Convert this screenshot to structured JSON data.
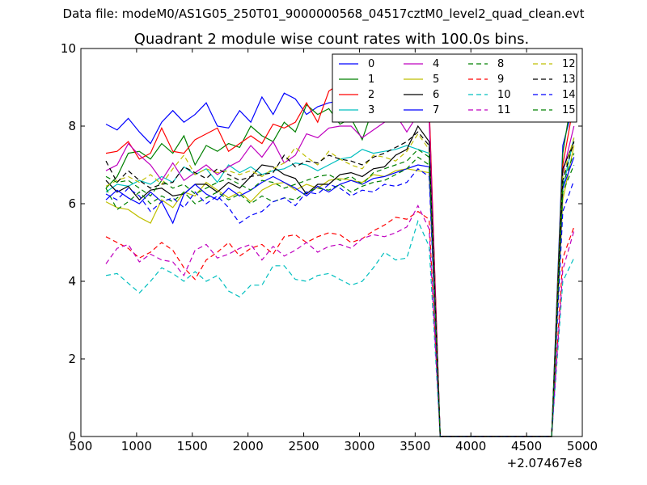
{
  "chart_data": {
    "type": "line",
    "suptitle": "Data file: modeM0/AS1G05_250T01_9000000568_04517cztM0_level2_quad_clean.evt",
    "title": "Quadrant 2 module wise count rates with 100.0s bins.",
    "xlabel": "",
    "ylabel": "",
    "x_offset_label": "+2.07467e8",
    "xlim": [
      500,
      5000
    ],
    "ylim": [
      0,
      10
    ],
    "xticks": [
      500,
      1000,
      1500,
      2000,
      2500,
      3000,
      3500,
      4000,
      4500,
      5000
    ],
    "yticks": [
      0,
      2,
      4,
      6,
      8,
      10
    ],
    "legend_position": "top-right",
    "legend_columns": 4,
    "x": [
      725,
      825,
      925,
      1025,
      1125,
      1225,
      1325,
      1425,
      1525,
      1625,
      1725,
      1825,
      1925,
      2025,
      2125,
      2225,
      2325,
      2425,
      2525,
      2625,
      2725,
      2825,
      2925,
      3025,
      3125,
      3225,
      3325,
      3425,
      3525,
      3625,
      3725,
      3825,
      3925,
      4025,
      4125,
      4225,
      4325,
      4425,
      4525,
      4625,
      4725,
      4825,
      4925
    ],
    "series": [
      {
        "name": "0",
        "color": "#0000ff",
        "dash": "solid",
        "values": [
          8.05,
          7.9,
          8.2,
          7.85,
          7.55,
          8.1,
          8.4,
          8.1,
          8.3,
          8.6,
          8.0,
          7.95,
          8.4,
          8.1,
          8.75,
          8.3,
          8.85,
          8.7,
          8.3,
          8.5,
          8.6,
          8.65,
          8.55,
          8.65,
          8.6,
          8.5,
          8.55,
          8.7,
          8.6,
          8.5,
          0,
          0,
          0,
          0,
          0,
          0,
          0,
          0,
          0,
          0,
          0,
          7.5,
          8.6
        ]
      },
      {
        "name": "1",
        "color": "#008000",
        "dash": "solid",
        "values": [
          6.4,
          6.7,
          7.3,
          7.35,
          7.15,
          7.55,
          7.3,
          7.75,
          7.0,
          7.5,
          7.35,
          7.55,
          7.45,
          8.0,
          7.75,
          7.6,
          8.1,
          7.85,
          8.55,
          8.3,
          8.45,
          8.05,
          8.2,
          7.65,
          8.5,
          8.35,
          8.15,
          8.6,
          8.5,
          8.4,
          0,
          0,
          0,
          0,
          0,
          0,
          0,
          0,
          0,
          0,
          0,
          7.3,
          9.1
        ]
      },
      {
        "name": "2",
        "color": "#ff0000",
        "dash": "solid",
        "values": [
          7.3,
          7.35,
          7.6,
          7.15,
          7.3,
          7.95,
          7.35,
          7.3,
          7.65,
          7.8,
          7.95,
          7.35,
          7.55,
          7.75,
          7.55,
          8.05,
          7.95,
          8.1,
          8.6,
          8.1,
          8.9,
          9.1,
          8.9,
          8.4,
          8.5,
          8.7,
          8.55,
          8.85,
          8.8,
          8.6,
          0,
          0,
          0,
          0,
          0,
          0,
          0,
          0,
          0,
          0,
          0,
          7.0,
          8.6
        ]
      },
      {
        "name": "3",
        "color": "#00bfbf",
        "dash": "solid",
        "values": [
          6.3,
          6.5,
          6.45,
          6.6,
          6.5,
          6.7,
          6.55,
          6.95,
          6.75,
          6.9,
          6.55,
          7.0,
          6.8,
          6.95,
          6.75,
          6.85,
          6.9,
          7.05,
          7.0,
          6.85,
          7.0,
          7.15,
          7.2,
          7.4,
          7.3,
          7.35,
          7.4,
          7.5,
          7.4,
          7.3,
          0,
          0,
          0,
          0,
          0,
          0,
          0,
          0,
          0,
          0,
          0,
          6.4,
          7.7
        ]
      },
      {
        "name": "4",
        "color": "#bf00bf",
        "dash": "solid",
        "values": [
          6.85,
          7.0,
          7.55,
          7.25,
          7.0,
          6.6,
          7.05,
          6.6,
          6.8,
          7.0,
          6.75,
          6.95,
          7.1,
          7.5,
          7.2,
          7.6,
          7.05,
          7.25,
          7.8,
          7.7,
          7.95,
          8.0,
          8.0,
          7.7,
          7.9,
          8.1,
          8.3,
          7.85,
          8.3,
          8.2,
          0,
          0,
          0,
          0,
          0,
          0,
          0,
          0,
          0,
          0,
          0,
          6.8,
          8.0
        ]
      },
      {
        "name": "5",
        "color": "#bfbf00",
        "dash": "solid",
        "values": [
          6.05,
          5.9,
          5.85,
          5.65,
          5.5,
          6.1,
          5.9,
          6.3,
          6.2,
          6.55,
          6.35,
          6.15,
          6.3,
          6.05,
          6.35,
          6.5,
          6.55,
          6.35,
          6.5,
          6.4,
          6.6,
          6.65,
          6.6,
          6.55,
          6.75,
          6.7,
          6.85,
          6.9,
          6.85,
          6.8,
          0,
          0,
          0,
          0,
          0,
          0,
          0,
          0,
          0,
          0,
          0,
          6.1,
          7.5
        ]
      },
      {
        "name": "6",
        "color": "#000000",
        "dash": "solid",
        "values": [
          6.6,
          6.3,
          6.45,
          6.1,
          6.35,
          6.4,
          6.2,
          6.25,
          6.5,
          6.5,
          6.3,
          6.55,
          6.4,
          6.7,
          7.0,
          6.95,
          6.75,
          6.65,
          6.25,
          6.5,
          6.5,
          6.75,
          6.8,
          6.7,
          6.9,
          6.95,
          7.25,
          7.4,
          8.0,
          7.6,
          0,
          0,
          0,
          0,
          0,
          0,
          0,
          0,
          0,
          0,
          0,
          6.9,
          7.6
        ]
      },
      {
        "name": "7",
        "color": "#0000ff",
        "dash": "solid",
        "values": [
          6.1,
          6.35,
          6.15,
          6.0,
          6.3,
          6.05,
          5.5,
          6.25,
          6.5,
          6.25,
          6.1,
          6.4,
          6.2,
          6.35,
          6.55,
          6.7,
          6.55,
          6.4,
          6.2,
          6.45,
          6.3,
          6.5,
          6.6,
          6.5,
          6.65,
          6.7,
          6.8,
          6.9,
          7.0,
          6.95,
          0,
          0,
          0,
          0,
          0,
          0,
          0,
          0,
          0,
          0,
          0,
          6.4,
          7.2
        ]
      },
      {
        "name": "8",
        "color": "#008000",
        "dash": "dashed",
        "values": [
          6.4,
          5.85,
          6.05,
          6.3,
          6.0,
          6.2,
          6.05,
          6.3,
          6.0,
          6.15,
          6.3,
          6.1,
          6.25,
          6.0,
          6.2,
          6.05,
          6.15,
          6.1,
          6.3,
          6.4,
          6.35,
          6.5,
          6.3,
          6.45,
          6.55,
          6.6,
          6.75,
          6.9,
          7.2,
          7.0,
          0,
          0,
          0,
          0,
          0,
          0,
          0,
          0,
          0,
          0,
          0,
          6.3,
          7.0
        ]
      },
      {
        "name": "9",
        "color": "#ff0000",
        "dash": "dashed",
        "values": [
          5.15,
          5.0,
          4.85,
          4.6,
          4.75,
          5.0,
          4.8,
          4.35,
          4.05,
          4.55,
          4.75,
          5.0,
          4.65,
          4.85,
          4.95,
          4.7,
          5.15,
          5.2,
          5.0,
          5.15,
          5.25,
          5.2,
          5.0,
          5.1,
          5.3,
          5.45,
          5.65,
          5.6,
          5.8,
          5.6,
          0,
          0,
          0,
          0,
          0,
          0,
          0,
          0,
          0,
          0,
          0,
          4.6,
          5.4
        ]
      },
      {
        "name": "10",
        "color": "#00bfbf",
        "dash": "dashed",
        "values": [
          4.15,
          4.2,
          3.95,
          3.7,
          4.0,
          4.35,
          4.2,
          4.0,
          4.25,
          4.0,
          4.15,
          3.75,
          3.6,
          3.9,
          3.9,
          4.4,
          4.4,
          4.05,
          4.0,
          4.15,
          4.2,
          4.05,
          3.9,
          4.0,
          4.35,
          4.75,
          4.55,
          4.6,
          5.55,
          4.9,
          0,
          0,
          0,
          0,
          0,
          0,
          0,
          0,
          0,
          0,
          0,
          4.0,
          4.6
        ]
      },
      {
        "name": "11",
        "color": "#bf00bf",
        "dash": "dashed",
        "values": [
          4.45,
          4.85,
          4.95,
          4.5,
          4.7,
          4.55,
          4.5,
          4.15,
          4.8,
          4.95,
          4.6,
          4.7,
          4.85,
          4.95,
          4.55,
          4.9,
          4.65,
          4.8,
          5.0,
          4.75,
          4.9,
          4.95,
          4.85,
          5.1,
          5.2,
          5.15,
          5.25,
          5.4,
          5.95,
          5.35,
          0,
          0,
          0,
          0,
          0,
          0,
          0,
          0,
          0,
          0,
          0,
          4.3,
          5.3
        ]
      },
      {
        "name": "12",
        "color": "#bfbf00",
        "dash": "dashed",
        "values": [
          6.45,
          6.6,
          6.7,
          6.55,
          6.75,
          6.5,
          6.9,
          7.25,
          6.75,
          6.9,
          6.8,
          6.85,
          6.75,
          6.85,
          6.7,
          6.9,
          7.05,
          7.45,
          7.2,
          7.0,
          7.35,
          7.15,
          7.0,
          6.9,
          7.25,
          7.2,
          7.1,
          7.35,
          7.8,
          7.4,
          0,
          0,
          0,
          0,
          0,
          0,
          0,
          0,
          0,
          0,
          0,
          6.7,
          7.7
        ]
      },
      {
        "name": "13",
        "color": "#000000",
        "dash": "dashed",
        "values": [
          7.1,
          6.55,
          6.85,
          6.6,
          6.4,
          6.5,
          6.55,
          6.95,
          6.8,
          6.65,
          6.9,
          6.75,
          6.6,
          6.7,
          6.75,
          6.8,
          7.25,
          6.95,
          7.1,
          7.05,
          7.25,
          7.15,
          7.1,
          7.0,
          7.2,
          7.3,
          7.45,
          7.6,
          7.85,
          7.5,
          0,
          0,
          0,
          0,
          0,
          0,
          0,
          0,
          0,
          0,
          0,
          6.6,
          7.6
        ]
      },
      {
        "name": "14",
        "color": "#0000ff",
        "dash": "dashed",
        "values": [
          6.25,
          6.1,
          6.4,
          6.2,
          5.8,
          6.05,
          6.15,
          5.9,
          6.3,
          6.0,
          6.2,
          5.9,
          5.5,
          5.7,
          5.8,
          6.05,
          6.15,
          5.95,
          6.3,
          6.25,
          6.5,
          6.4,
          6.2,
          6.35,
          6.3,
          6.5,
          6.45,
          6.55,
          6.9,
          6.7,
          0,
          0,
          0,
          0,
          0,
          0,
          0,
          0,
          0,
          0,
          0,
          5.8,
          6.6
        ]
      },
      {
        "name": "15",
        "color": "#008000",
        "dash": "dashed",
        "values": [
          6.7,
          6.55,
          6.6,
          6.4,
          6.2,
          6.6,
          6.4,
          6.5,
          6.25,
          6.4,
          6.55,
          6.65,
          6.5,
          6.35,
          6.6,
          6.55,
          6.4,
          6.5,
          6.6,
          6.7,
          6.75,
          6.6,
          6.7,
          6.5,
          6.8,
          6.9,
          7.0,
          7.1,
          7.4,
          7.2,
          0,
          0,
          0,
          0,
          0,
          0,
          0,
          0,
          0,
          0,
          0,
          6.5,
          7.3
        ]
      }
    ]
  }
}
